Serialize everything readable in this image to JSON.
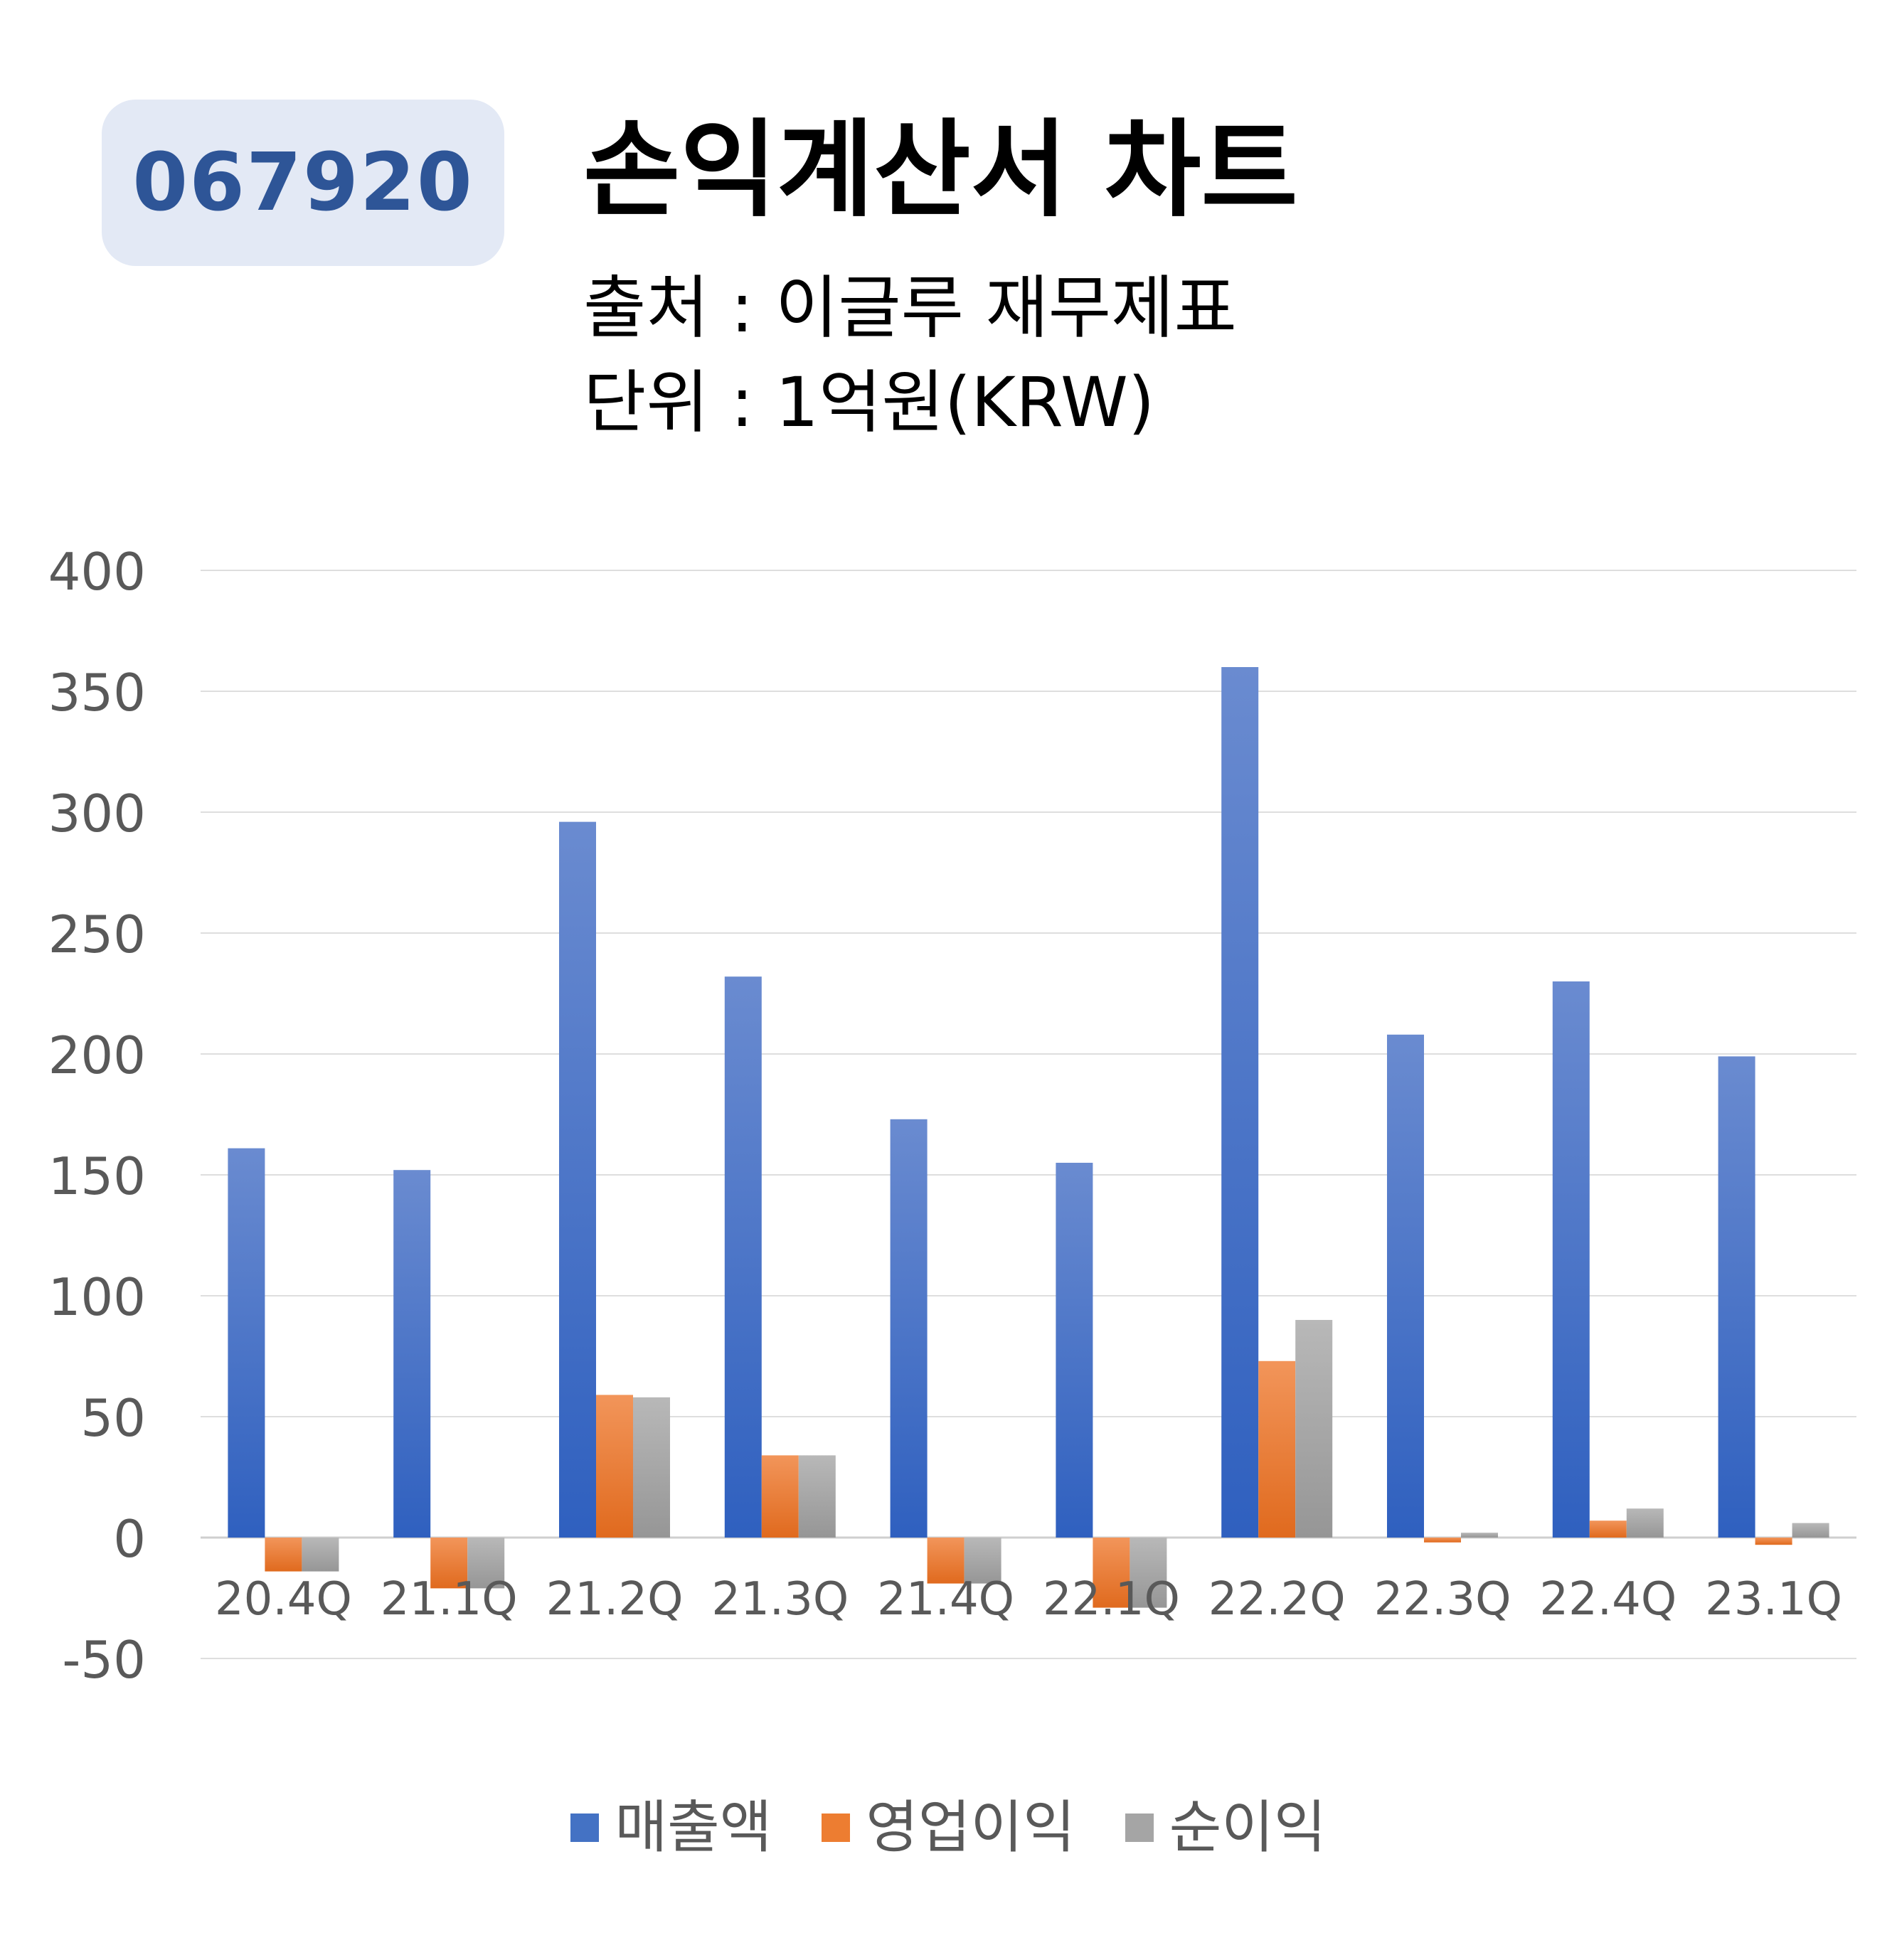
{
  "header": {
    "ticker": "067920",
    "title": "손익계산서 차트",
    "source": "출처 : 이글루 재무제표",
    "unit": "단위 : 1억원(KRW)"
  },
  "colors": {
    "badge_bg": "#e3e9f5",
    "badge_text": "#2e5597",
    "revenue": "#4472c4",
    "operating": "#ed7d31",
    "net": "#a5a5a5"
  },
  "chart_data": {
    "type": "bar",
    "title": "손익계산서 차트",
    "categories": [
      "20.4Q",
      "21.1Q",
      "21.2Q",
      "21.3Q",
      "21.4Q",
      "22.1Q",
      "22.2Q",
      "22.3Q",
      "22.4Q",
      "23.1Q"
    ],
    "series": [
      {
        "name": "매출액",
        "values": [
          161,
          152,
          296,
          232,
          173,
          155,
          360,
          208,
          230,
          199
        ]
      },
      {
        "name": "영업이익",
        "values": [
          -14,
          -21,
          59,
          34,
          -19,
          -29,
          73,
          -2,
          7,
          -3
        ]
      },
      {
        "name": "순이익",
        "values": [
          -14,
          -21,
          58,
          34,
          -19,
          -29,
          90,
          2,
          12,
          6
        ]
      }
    ],
    "ylim": [
      -50,
      400
    ],
    "yticks": [
      -50,
      0,
      50,
      100,
      150,
      200,
      250,
      300,
      350,
      400
    ],
    "grid": true,
    "legend": "bottom"
  }
}
